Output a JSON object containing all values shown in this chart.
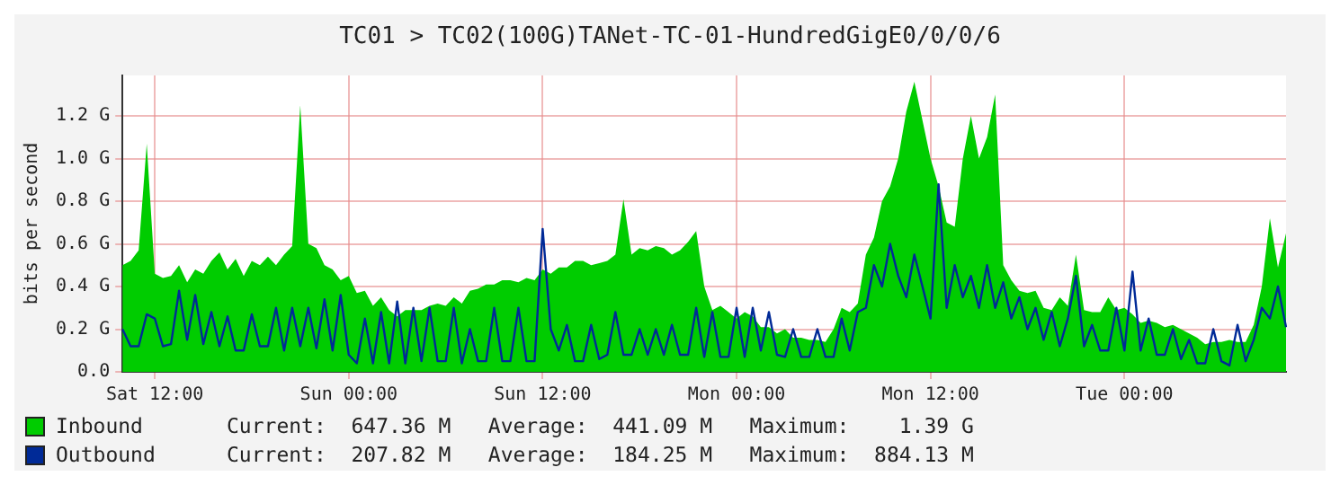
{
  "chart_data": {
    "type": "area",
    "title": "TC01 > TC02(100G)TANet-TC-01-HundredGigE0/0/0/6",
    "ylabel": "bits per second",
    "categories": [
      null,
      null,
      null,
      null,
      "Sat 12:00",
      null,
      null,
      null,
      null,
      null,
      null,
      null,
      null,
      null,
      null,
      null,
      null,
      null,
      null,
      null,
      null,
      null,
      null,
      null,
      null,
      null,
      null,
      null,
      "Sun 00:00",
      null,
      null,
      null,
      null,
      null,
      null,
      null,
      null,
      null,
      null,
      null,
      null,
      null,
      null,
      null,
      null,
      null,
      null,
      null,
      null,
      null,
      null,
      null,
      "Sun 12:00",
      null,
      null,
      null,
      null,
      null,
      null,
      null,
      null,
      null,
      null,
      null,
      null,
      null,
      null,
      null,
      null,
      null,
      null,
      null,
      null,
      null,
      null,
      null,
      "Mon 00:00",
      null,
      null,
      null,
      null,
      null,
      null,
      null,
      null,
      null,
      null,
      null,
      null,
      null,
      null,
      null,
      null,
      null,
      null,
      null,
      null,
      null,
      null,
      null,
      "Mon 12:00",
      null,
      null,
      null,
      null,
      null,
      null,
      null,
      null,
      null,
      null,
      null,
      null,
      null,
      null,
      null,
      null,
      null,
      null,
      null,
      null,
      null,
      null,
      null,
      "Tue 00:00",
      null,
      null,
      null,
      null,
      null,
      null,
      null,
      null,
      null,
      null,
      null,
      null,
      null,
      null,
      null,
      null,
      null,
      null,
      null,
      null
    ],
    "ylim": [
      0,
      1.39
    ],
    "yticks": [
      {
        "value": 0,
        "label": "0.0"
      },
      {
        "value": 0.2,
        "label": "0.2 G"
      },
      {
        "value": 0.4,
        "label": "0.4 G"
      },
      {
        "value": 0.6,
        "label": "0.6 G"
      },
      {
        "value": 0.8,
        "label": "0.8 G"
      },
      {
        "value": 1.0,
        "label": "1.0 G"
      },
      {
        "value": 1.2,
        "label": "1.2 G"
      }
    ],
    "grid": true,
    "legend": "bottom",
    "series": [
      {
        "name": "Inbound",
        "type": "area",
        "color": "#00cc00",
        "values": [
          0.5,
          0.52,
          0.57,
          1.07,
          0.46,
          0.44,
          0.45,
          0.5,
          0.42,
          0.48,
          0.46,
          0.52,
          0.56,
          0.48,
          0.53,
          0.45,
          0.52,
          0.5,
          0.54,
          0.5,
          0.55,
          0.59,
          1.25,
          0.6,
          0.58,
          0.5,
          0.48,
          0.43,
          0.45,
          0.37,
          0.38,
          0.31,
          0.35,
          0.29,
          0.26,
          0.29,
          0.29,
          0.29,
          0.31,
          0.32,
          0.31,
          0.35,
          0.32,
          0.38,
          0.39,
          0.41,
          0.41,
          0.43,
          0.43,
          0.42,
          0.44,
          0.43,
          0.48,
          0.46,
          0.49,
          0.49,
          0.52,
          0.52,
          0.5,
          0.51,
          0.52,
          0.55,
          0.81,
          0.55,
          0.58,
          0.57,
          0.59,
          0.58,
          0.55,
          0.57,
          0.61,
          0.66,
          0.4,
          0.29,
          0.31,
          0.28,
          0.25,
          0.28,
          0.26,
          0.21,
          0.21,
          0.18,
          0.2,
          0.16,
          0.16,
          0.15,
          0.15,
          0.14,
          0.2,
          0.3,
          0.28,
          0.32,
          0.55,
          0.63,
          0.8,
          0.87,
          1.0,
          1.22,
          1.36,
          1.18,
          1.0,
          0.87,
          0.7,
          0.68,
          1.0,
          1.2,
          1.0,
          1.1,
          1.3,
          0.5,
          0.43,
          0.38,
          0.37,
          0.38,
          0.3,
          0.29,
          0.35,
          0.31,
          0.55,
          0.29,
          0.28,
          0.28,
          0.35,
          0.29,
          0.3,
          0.27,
          0.23,
          0.24,
          0.23,
          0.21,
          0.22,
          0.2,
          0.18,
          0.16,
          0.13,
          0.14,
          0.14,
          0.15,
          0.14,
          0.14,
          0.22,
          0.4,
          0.72,
          0.49,
          0.65
        ]
      },
      {
        "name": "Outbound",
        "type": "line",
        "color": "#002a97",
        "values": [
          0.2,
          0.12,
          0.12,
          0.27,
          0.25,
          0.12,
          0.13,
          0.38,
          0.15,
          0.36,
          0.13,
          0.28,
          0.12,
          0.26,
          0.1,
          0.1,
          0.27,
          0.12,
          0.12,
          0.3,
          0.1,
          0.3,
          0.12,
          0.3,
          0.11,
          0.34,
          0.1,
          0.36,
          0.08,
          0.04,
          0.25,
          0.04,
          0.28,
          0.04,
          0.33,
          0.04,
          0.3,
          0.05,
          0.3,
          0.05,
          0.05,
          0.3,
          0.04,
          0.2,
          0.05,
          0.05,
          0.3,
          0.05,
          0.05,
          0.3,
          0.05,
          0.05,
          0.67,
          0.2,
          0.1,
          0.22,
          0.05,
          0.05,
          0.22,
          0.06,
          0.08,
          0.28,
          0.08,
          0.08,
          0.2,
          0.08,
          0.2,
          0.08,
          0.22,
          0.08,
          0.08,
          0.3,
          0.07,
          0.28,
          0.07,
          0.07,
          0.3,
          0.07,
          0.3,
          0.1,
          0.28,
          0.08,
          0.07,
          0.2,
          0.07,
          0.07,
          0.2,
          0.07,
          0.07,
          0.25,
          0.1,
          0.28,
          0.3,
          0.5,
          0.4,
          0.6,
          0.45,
          0.35,
          0.55,
          0.4,
          0.25,
          0.88,
          0.3,
          0.5,
          0.35,
          0.45,
          0.3,
          0.5,
          0.3,
          0.42,
          0.25,
          0.35,
          0.2,
          0.3,
          0.15,
          0.28,
          0.12,
          0.25,
          0.45,
          0.12,
          0.22,
          0.1,
          0.1,
          0.3,
          0.1,
          0.47,
          0.1,
          0.25,
          0.08,
          0.08,
          0.2,
          0.06,
          0.15,
          0.04,
          0.04,
          0.2,
          0.05,
          0.03,
          0.22,
          0.05,
          0.15,
          0.3,
          0.25,
          0.4,
          0.21
        ]
      }
    ],
    "annotations": [
      "Current:  647.36 M   Average:  441.09 M   Maximum:    1.39 G",
      "Current:  207.82 M   Average:  184.25 M   Maximum:  884.13 M"
    ]
  }
}
